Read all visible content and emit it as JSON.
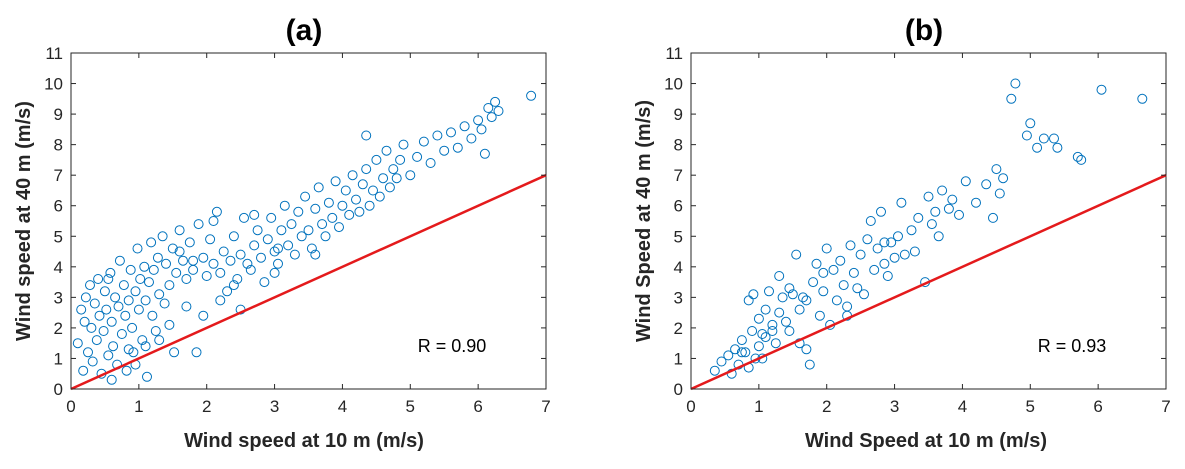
{
  "colors": {
    "marker": "#0072BD",
    "reference_line": "#E41A1C",
    "axis": "#262626"
  },
  "chart_data": [
    {
      "type": "scatter",
      "title": "(a)",
      "xlabel": "Wind speed at 10 m (m/s)",
      "ylabel": "Wind speed at 40 m (m/s)",
      "xlim": [
        0,
        7
      ],
      "ylim": [
        0,
        11
      ],
      "xticks": [
        "0",
        "1",
        "2",
        "3",
        "4",
        "5",
        "6",
        "7"
      ],
      "yticks": [
        "0",
        "1",
        "2",
        "3",
        "4",
        "5",
        "6",
        "7",
        "8",
        "9",
        "10",
        "11"
      ],
      "annotation": "R = 0.90",
      "reference_line": {
        "x": [
          0,
          7
        ],
        "y": [
          0,
          7
        ]
      },
      "grid": false,
      "marker": "open-circle",
      "points": [
        [
          0.1,
          1.5
        ],
        [
          0.15,
          2.6
        ],
        [
          0.18,
          0.6
        ],
        [
          0.2,
          2.2
        ],
        [
          0.22,
          3.0
        ],
        [
          0.25,
          1.2
        ],
        [
          0.28,
          3.4
        ],
        [
          0.3,
          2.0
        ],
        [
          0.32,
          0.9
        ],
        [
          0.35,
          2.8
        ],
        [
          0.38,
          1.6
        ],
        [
          0.4,
          3.6
        ],
        [
          0.42,
          2.4
        ],
        [
          0.45,
          0.5
        ],
        [
          0.48,
          1.9
        ],
        [
          0.5,
          3.2
        ],
        [
          0.52,
          2.6
        ],
        [
          0.55,
          1.1
        ],
        [
          0.58,
          3.8
        ],
        [
          0.6,
          2.2
        ],
        [
          0.62,
          1.4
        ],
        [
          0.65,
          3.0
        ],
        [
          0.68,
          0.8
        ],
        [
          0.7,
          2.7
        ],
        [
          0.72,
          4.2
        ],
        [
          0.75,
          1.8
        ],
        [
          0.78,
          3.4
        ],
        [
          0.8,
          2.4
        ],
        [
          0.82,
          0.6
        ],
        [
          0.85,
          2.9
        ],
        [
          0.88,
          3.9
        ],
        [
          0.9,
          2.0
        ],
        [
          0.92,
          1.2
        ],
        [
          0.95,
          3.2
        ],
        [
          0.98,
          4.6
        ],
        [
          1.0,
          2.6
        ],
        [
          1.02,
          3.6
        ],
        [
          1.05,
          1.6
        ],
        [
          1.08,
          4.0
        ],
        [
          1.1,
          2.9
        ],
        [
          1.12,
          0.4
        ],
        [
          1.15,
          3.5
        ],
        [
          1.18,
          4.8
        ],
        [
          1.2,
          2.4
        ],
        [
          1.22,
          3.9
        ],
        [
          1.25,
          1.9
        ],
        [
          1.28,
          4.3
        ],
        [
          1.3,
          3.1
        ],
        [
          1.35,
          5.0
        ],
        [
          1.38,
          2.8
        ],
        [
          1.4,
          4.1
        ],
        [
          1.45,
          3.4
        ],
        [
          1.5,
          4.6
        ],
        [
          1.52,
          1.2
        ],
        [
          1.55,
          3.8
        ],
        [
          1.6,
          5.2
        ],
        [
          1.65,
          4.2
        ],
        [
          1.7,
          3.6
        ],
        [
          1.75,
          4.8
        ],
        [
          1.8,
          3.9
        ],
        [
          1.85,
          1.2
        ],
        [
          1.88,
          5.4
        ],
        [
          1.95,
          4.3
        ],
        [
          2.0,
          3.7
        ],
        [
          2.05,
          4.9
        ],
        [
          2.1,
          4.1
        ],
        [
          2.15,
          5.8
        ],
        [
          2.2,
          3.8
        ],
        [
          2.25,
          4.5
        ],
        [
          2.3,
          3.2
        ],
        [
          2.35,
          4.2
        ],
        [
          2.4,
          5.0
        ],
        [
          2.45,
          3.6
        ],
        [
          2.5,
          4.4
        ],
        [
          2.55,
          5.6
        ],
        [
          2.6,
          4.1
        ],
        [
          2.65,
          3.9
        ],
        [
          2.7,
          4.7
        ],
        [
          2.75,
          5.2
        ],
        [
          2.8,
          4.3
        ],
        [
          2.85,
          3.5
        ],
        [
          2.9,
          4.9
        ],
        [
          2.95,
          5.6
        ],
        [
          3.0,
          4.5
        ],
        [
          3.05,
          4.1
        ],
        [
          3.1,
          5.2
        ],
        [
          3.15,
          6.0
        ],
        [
          3.2,
          4.7
        ],
        [
          3.25,
          5.4
        ],
        [
          3.3,
          4.4
        ],
        [
          3.35,
          5.8
        ],
        [
          3.4,
          5.0
        ],
        [
          3.45,
          6.3
        ],
        [
          3.5,
          5.2
        ],
        [
          3.55,
          4.6
        ],
        [
          3.6,
          5.9
        ],
        [
          3.65,
          6.6
        ],
        [
          3.7,
          5.4
        ],
        [
          3.75,
          5.0
        ],
        [
          3.8,
          6.1
        ],
        [
          3.85,
          5.6
        ],
        [
          3.9,
          6.8
        ],
        [
          3.95,
          5.3
        ],
        [
          4.0,
          6.0
        ],
        [
          4.05,
          6.5
        ],
        [
          4.1,
          5.7
        ],
        [
          4.15,
          7.0
        ],
        [
          4.2,
          6.2
        ],
        [
          4.25,
          5.8
        ],
        [
          4.3,
          6.7
        ],
        [
          4.35,
          7.2
        ],
        [
          4.4,
          6.0
        ],
        [
          4.45,
          6.5
        ],
        [
          4.5,
          7.5
        ],
        [
          4.55,
          6.3
        ],
        [
          4.6,
          6.9
        ],
        [
          4.65,
          7.8
        ],
        [
          4.7,
          6.6
        ],
        [
          4.75,
          7.2
        ],
        [
          4.8,
          6.9
        ],
        [
          4.85,
          7.5
        ],
        [
          4.9,
          8.0
        ],
        [
          5.0,
          7.0
        ],
        [
          5.1,
          7.6
        ],
        [
          5.2,
          8.1
        ],
        [
          5.3,
          7.4
        ],
        [
          5.4,
          8.3
        ],
        [
          5.5,
          7.8
        ],
        [
          5.6,
          8.4
        ],
        [
          5.7,
          7.9
        ],
        [
          5.8,
          8.6
        ],
        [
          5.9,
          8.2
        ],
        [
          6.0,
          8.8
        ],
        [
          6.05,
          8.5
        ],
        [
          6.1,
          7.7
        ],
        [
          6.15,
          9.2
        ],
        [
          6.2,
          8.9
        ],
        [
          6.25,
          9.4
        ],
        [
          6.3,
          9.1
        ],
        [
          6.78,
          9.6
        ],
        [
          1.6,
          4.5
        ],
        [
          2.1,
          5.5
        ],
        [
          2.7,
          5.7
        ],
        [
          3.05,
          4.6
        ],
        [
          1.7,
          2.7
        ],
        [
          1.8,
          4.2
        ],
        [
          2.2,
          2.9
        ],
        [
          2.5,
          2.6
        ],
        [
          0.6,
          0.3
        ],
        [
          0.95,
          0.8
        ],
        [
          1.1,
          1.4
        ],
        [
          1.3,
          1.6
        ],
        [
          0.85,
          1.3
        ],
        [
          4.35,
          8.3
        ],
        [
          3.6,
          4.4
        ],
        [
          3.0,
          3.8
        ],
        [
          2.4,
          3.4
        ],
        [
          1.95,
          2.4
        ],
        [
          1.45,
          2.1
        ],
        [
          0.55,
          3.6
        ]
      ]
    },
    {
      "type": "scatter",
      "title": "(b)",
      "xlabel": "Wind Speed at 10 m (m/s)",
      "ylabel": "Wind Speed at 40 m (m/s)",
      "xlim": [
        0,
        7
      ],
      "ylim": [
        0,
        11
      ],
      "xticks": [
        "0",
        "1",
        "2",
        "3",
        "4",
        "5",
        "6",
        "7"
      ],
      "yticks": [
        "0",
        "1",
        "2",
        "3",
        "4",
        "5",
        "6",
        "7",
        "8",
        "9",
        "10",
        "11"
      ],
      "annotation": "R = 0.93",
      "reference_line": {
        "x": [
          0,
          7
        ],
        "y": [
          0,
          7
        ]
      },
      "grid": false,
      "marker": "open-circle",
      "points": [
        [
          0.35,
          0.6
        ],
        [
          0.45,
          0.9
        ],
        [
          0.55,
          1.1
        ],
        [
          0.6,
          0.5
        ],
        [
          0.65,
          1.3
        ],
        [
          0.7,
          0.8
        ],
        [
          0.75,
          1.6
        ],
        [
          0.8,
          1.2
        ],
        [
          0.85,
          2.9
        ],
        [
          0.85,
          0.7
        ],
        [
          0.9,
          1.9
        ],
        [
          0.92,
          3.1
        ],
        [
          0.95,
          1.0
        ],
        [
          1.0,
          2.3
        ],
        [
          1.0,
          1.4
        ],
        [
          1.05,
          1.8
        ],
        [
          1.1,
          2.6
        ],
        [
          1.1,
          1.7
        ],
        [
          1.15,
          3.2
        ],
        [
          1.2,
          2.1
        ],
        [
          1.25,
          1.5
        ],
        [
          1.3,
          3.7
        ],
        [
          1.3,
          2.5
        ],
        [
          1.35,
          3.0
        ],
        [
          1.4,
          2.2
        ],
        [
          1.45,
          1.9
        ],
        [
          1.5,
          3.1
        ],
        [
          1.55,
          4.4
        ],
        [
          1.6,
          2.6
        ],
        [
          1.65,
          3.0
        ],
        [
          1.7,
          1.3
        ],
        [
          1.7,
          2.9
        ],
        [
          1.75,
          0.8
        ],
        [
          1.8,
          3.5
        ],
        [
          1.85,
          4.1
        ],
        [
          1.9,
          2.4
        ],
        [
          1.95,
          3.2
        ],
        [
          2.0,
          4.6
        ],
        [
          2.05,
          2.1
        ],
        [
          2.1,
          3.9
        ],
        [
          2.15,
          2.9
        ],
        [
          2.2,
          4.2
        ],
        [
          2.25,
          3.4
        ],
        [
          2.3,
          2.4
        ],
        [
          2.35,
          4.7
        ],
        [
          2.4,
          3.8
        ],
        [
          2.45,
          3.3
        ],
        [
          2.5,
          4.4
        ],
        [
          2.55,
          3.1
        ],
        [
          2.6,
          4.9
        ],
        [
          2.65,
          5.5
        ],
        [
          2.7,
          3.9
        ],
        [
          2.75,
          4.6
        ],
        [
          2.8,
          5.8
        ],
        [
          2.85,
          4.1
        ],
        [
          2.9,
          3.7
        ],
        [
          2.95,
          4.8
        ],
        [
          3.0,
          4.3
        ],
        [
          3.05,
          5.0
        ],
        [
          3.1,
          6.1
        ],
        [
          3.15,
          4.4
        ],
        [
          3.25,
          5.2
        ],
        [
          3.35,
          5.6
        ],
        [
          3.45,
          3.5
        ],
        [
          3.5,
          6.3
        ],
        [
          3.55,
          5.4
        ],
        [
          3.6,
          5.8
        ],
        [
          3.65,
          5.0
        ],
        [
          3.7,
          6.5
        ],
        [
          3.8,
          5.9
        ],
        [
          3.85,
          6.2
        ],
        [
          3.95,
          5.7
        ],
        [
          4.05,
          6.8
        ],
        [
          4.2,
          6.1
        ],
        [
          4.35,
          6.7
        ],
        [
          4.45,
          5.6
        ],
        [
          4.5,
          7.2
        ],
        [
          4.55,
          6.4
        ],
        [
          4.6,
          6.9
        ],
        [
          4.72,
          9.5
        ],
        [
          4.78,
          10.0
        ],
        [
          4.95,
          8.3
        ],
        [
          5.0,
          8.7
        ],
        [
          5.1,
          7.9
        ],
        [
          5.2,
          8.2
        ],
        [
          5.35,
          8.2
        ],
        [
          5.4,
          7.9
        ],
        [
          5.7,
          7.6
        ],
        [
          5.75,
          7.5
        ],
        [
          6.05,
          9.8
        ],
        [
          6.65,
          9.5
        ],
        [
          1.05,
          1.0
        ],
        [
          1.2,
          1.9
        ],
        [
          1.6,
          1.5
        ],
        [
          2.3,
          2.7
        ],
        [
          0.75,
          1.2
        ],
        [
          1.95,
          3.8
        ],
        [
          3.3,
          4.5
        ],
        [
          2.85,
          4.8
        ],
        [
          1.45,
          3.3
        ]
      ]
    }
  ]
}
